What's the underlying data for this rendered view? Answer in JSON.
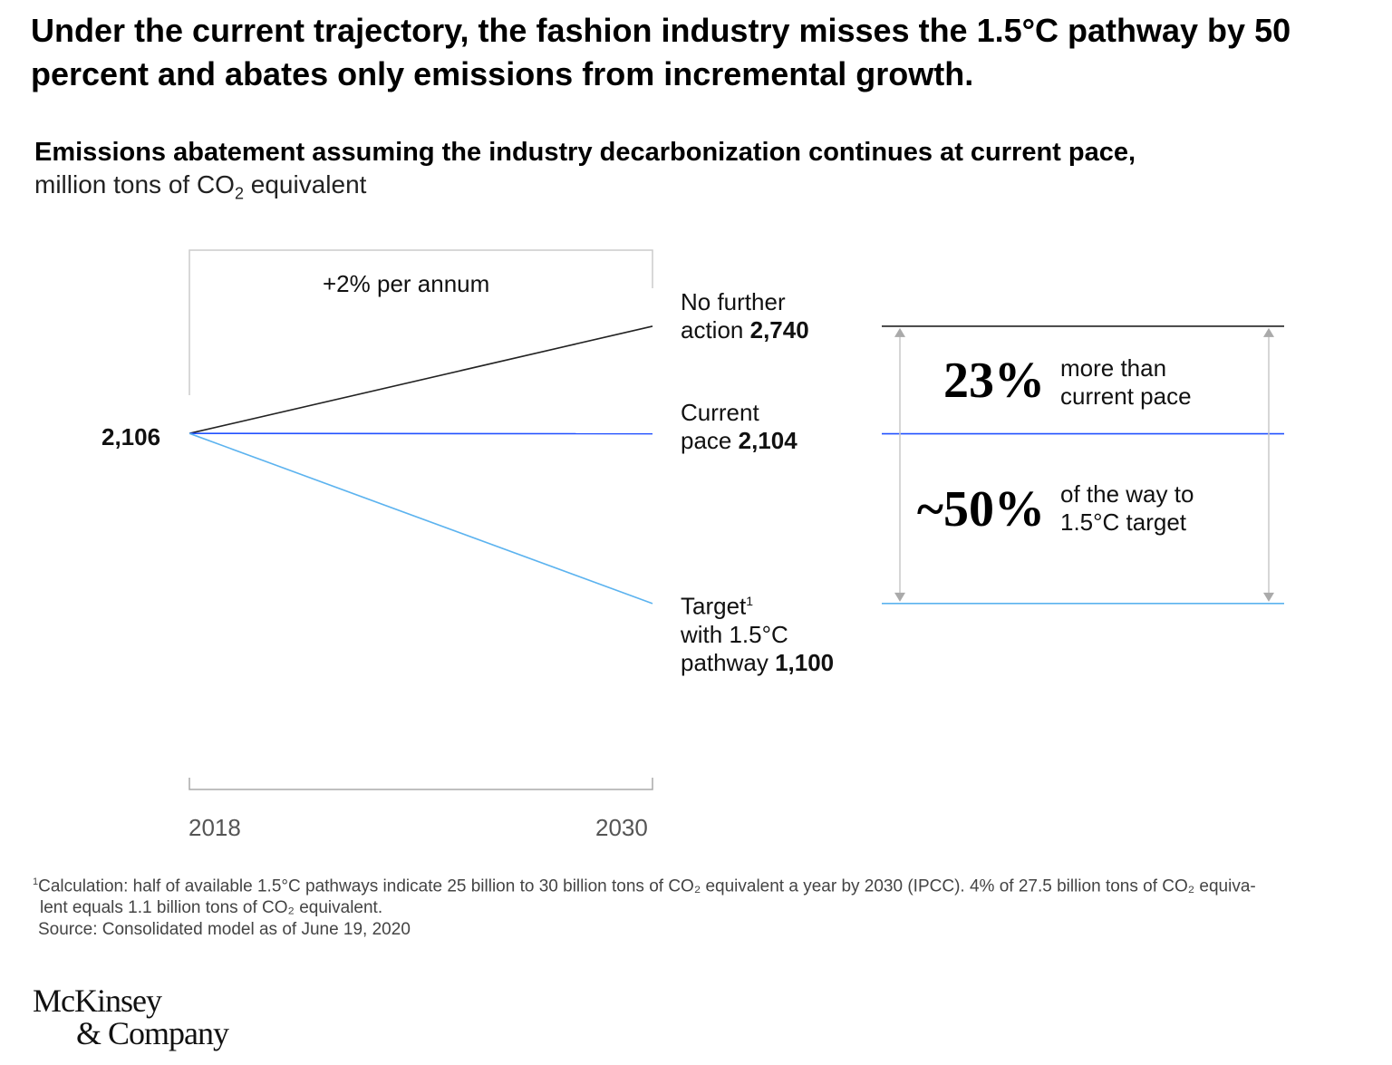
{
  "title": "Under the current trajectory, the fashion industry misses the 1.5°C pathway by 50 percent and abates only emissions from incremental growth.",
  "chart_data": {
    "type": "line",
    "title": "Emissions abatement assuming the industry decarbonization continues at current pace,",
    "units_prefix": "million tons of CO",
    "units_sub": "2",
    "units_suffix": " equivalent",
    "x": [
      "2018",
      "2030"
    ],
    "ylim": [
      0,
      3190
    ],
    "start_label": "2,106",
    "period_label": "+2% per annum",
    "series": [
      {
        "name": "No further action",
        "label_line1": "No further",
        "label_line2": "action",
        "value_label": "2,740",
        "values": [
          2106,
          2740
        ],
        "color": "#222222"
      },
      {
        "name": "Current pace",
        "label_line1": "Current",
        "label_line2": "pace",
        "value_label": "2,104",
        "values": [
          2106,
          2104
        ],
        "color": "#2251ff"
      },
      {
        "name": "Target with 1.5°C pathway",
        "label_line1": "Target",
        "footnote_mark": "1",
        "label_line2": "with 1.5°C",
        "label_line3": "pathway",
        "value_label": "1,100",
        "values": [
          2106,
          1100
        ],
        "color": "#5cb3ef"
      }
    ],
    "annotations": [
      {
        "big": "23%",
        "line1": "more than",
        "line2": "current pace"
      },
      {
        "big": "~50%",
        "line1": "of the way to",
        "line2": "1.5°C target"
      }
    ]
  },
  "footnote": {
    "mark": "1",
    "line1": "Calculation: half of available 1.5°C pathways indicate 25 billion to 30 billion tons of CO₂ equivalent a year by 2030 (IPCC). 4% of 27.5 billion tons of CO₂ equiva-",
    "line2": "lent equals 1.1 billion tons of CO₂ equivalent.",
    "source": "Source: Consolidated model as of June 19, 2020"
  },
  "logo": {
    "line1": "McKinsey",
    "line2": "& Company"
  }
}
